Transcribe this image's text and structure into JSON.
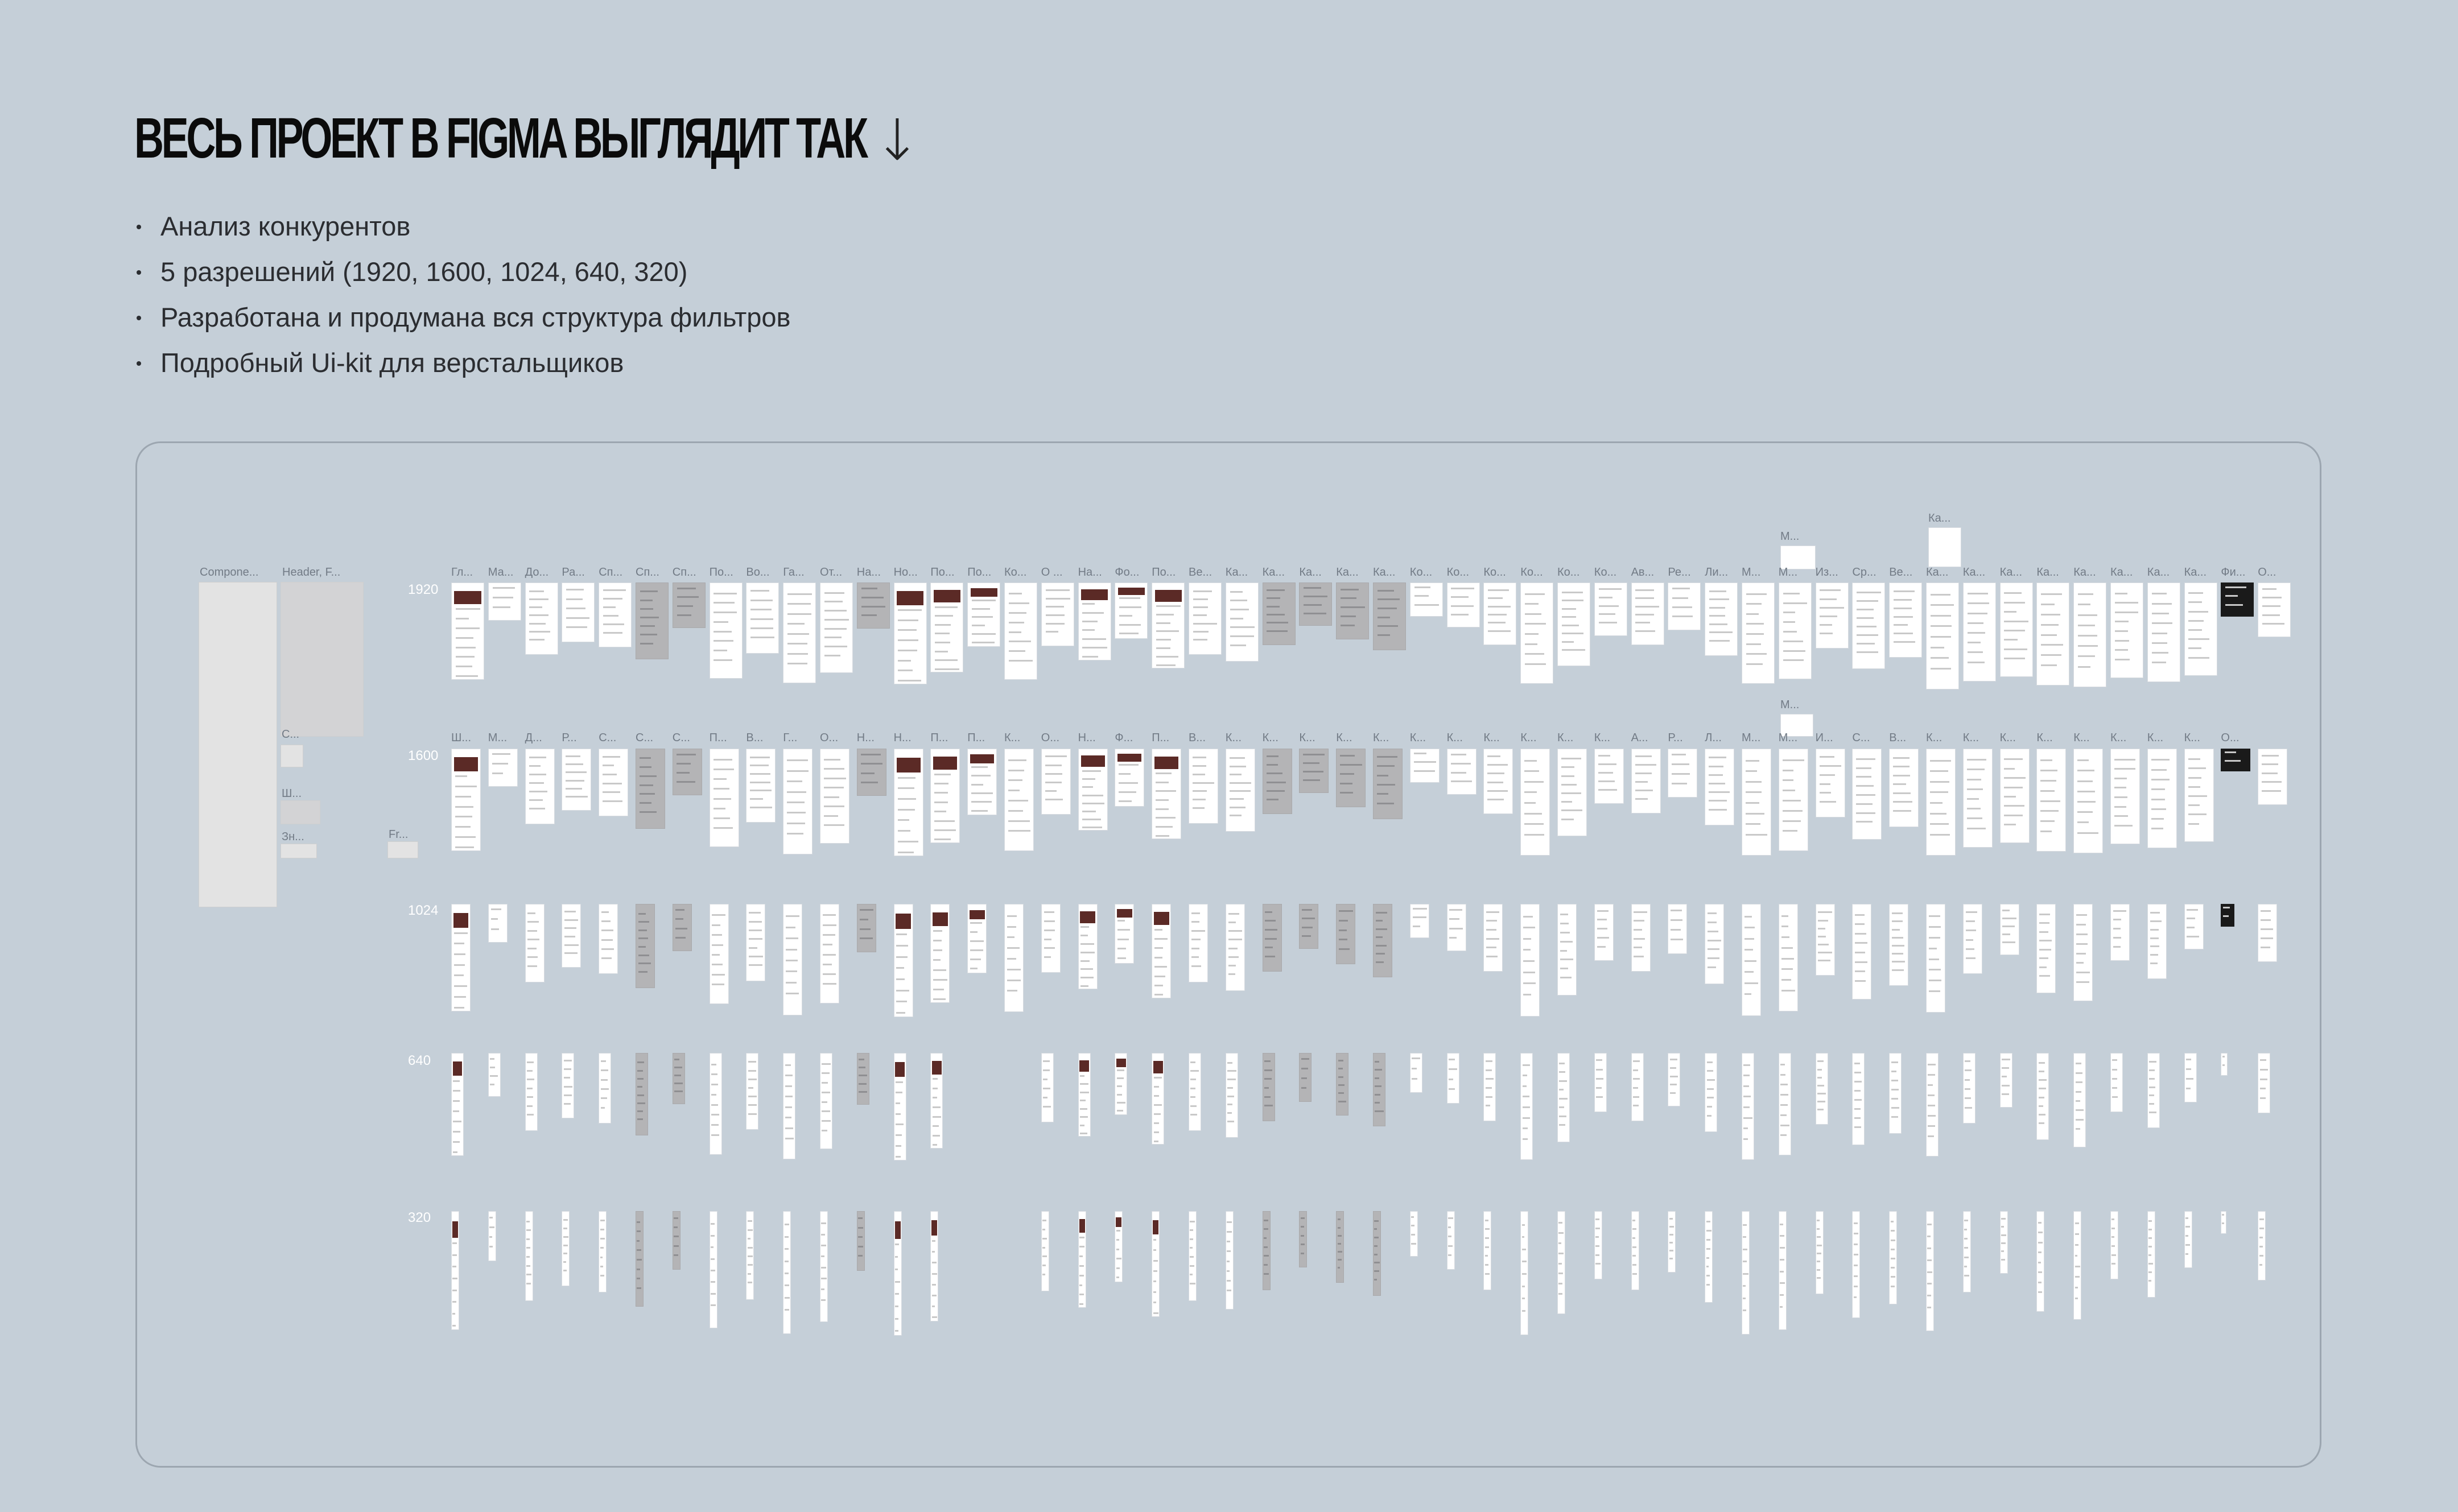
{
  "header": {
    "title": "ВЕСЬ ПРОЕКТ В FIGMA ВЫГЛЯДИТ ТАК",
    "arrow_glyph": "↓",
    "arrow_icon": "arrow-down-icon"
  },
  "bullets": [
    "Анализ конкурентов",
    "5 разрешений (1920, 1600, 1024, 640, 320)",
    "Разработана и продумана вся структура фильтров",
    "Подробный Ui-kit для верстальщиков"
  ],
  "canvas": {
    "left_labels": [
      "Compone...",
      "Header, F...",
      "Fr...",
      "C...",
      "Ш...",
      "Зн..."
    ],
    "row_labels": [
      "1920",
      "1600",
      "1024",
      "640",
      "320"
    ],
    "row1920_titles": [
      "Гл...",
      "Ма...",
      "До...",
      "Ра...",
      "Сп...",
      "Сп...",
      "Сп...",
      "По...",
      "Во...",
      "Га...",
      "От...",
      "На...",
      "Но...",
      "По...",
      "По...",
      "Ко...",
      "О ...",
      "На...",
      "Фо...",
      "По...",
      "Ве...",
      "Ка...",
      "Ка...",
      "Ка...",
      "Ка...",
      "Ка...",
      "Ко...",
      "Ко...",
      "Ко...",
      "Ко...",
      "Ко...",
      "Ко...",
      "Ав...",
      "Ре...",
      "Ли...",
      "М...",
      "М...",
      "Из...",
      "Ср...",
      "Ве...",
      "Ка...",
      "Ка...",
      "Ка...",
      "Ка...",
      "Ка...",
      "Ка...",
      "Ка...",
      "Ка...",
      "Фи...",
      "О..."
    ],
    "row1600_titles": [
      "Ш...",
      "М...",
      "Д...",
      "Р...",
      "С...",
      "С...",
      "С...",
      "П...",
      "В...",
      "Г...",
      "О...",
      "Н...",
      "Н...",
      "П...",
      "П...",
      "К...",
      "О...",
      "Н...",
      "Ф...",
      "П...",
      "В...",
      "К...",
      "К...",
      "К...",
      "К...",
      "К...",
      "К...",
      "К...",
      "К...",
      "К...",
      "К...",
      "К...",
      "А...",
      "Р...",
      "Л...",
      "М...",
      "М...",
      "И...",
      "С...",
      "В...",
      "К...",
      "К...",
      "К...",
      "К...",
      "К...",
      "К...",
      "К...",
      "К...",
      "О..."
    ],
    "floating_titles": [
      "М...",
      "Ка...",
      "М..."
    ]
  }
}
